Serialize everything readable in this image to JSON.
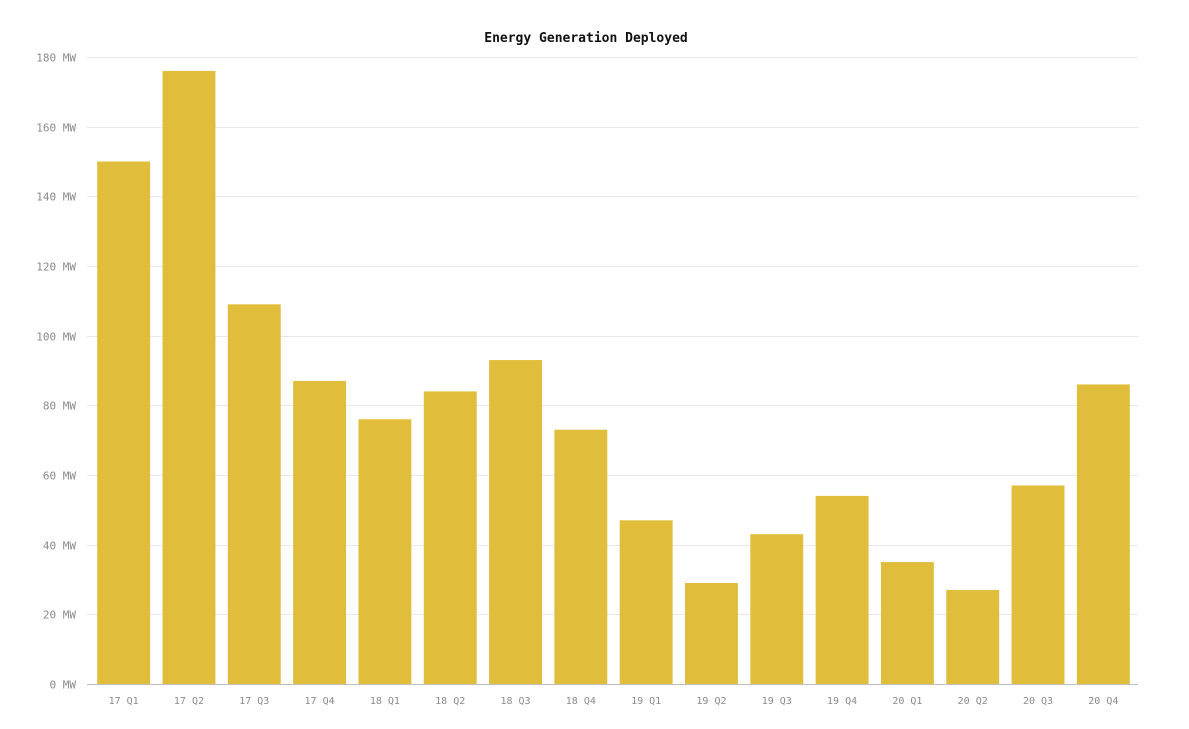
{
  "chart_data": {
    "type": "bar",
    "title": "Energy Generation Deployed",
    "xlabel": "",
    "ylabel": "",
    "categories": [
      "17 Q1",
      "17 Q2",
      "17 Q3",
      "17 Q4",
      "18 Q1",
      "18 Q2",
      "18 Q3",
      "18 Q4",
      "19 Q1",
      "19 Q2",
      "19 Q3",
      "19 Q4",
      "20 Q1",
      "20 Q2",
      "20 Q3",
      "20 Q4"
    ],
    "values": [
      150,
      176,
      109,
      87,
      76,
      84,
      93,
      73,
      47,
      29,
      43,
      54,
      35,
      27,
      57,
      86
    ],
    "ylim": [
      0,
      180
    ],
    "yticks": [
      0,
      20,
      40,
      60,
      80,
      100,
      120,
      140,
      160,
      180
    ],
    "ytick_labels": [
      "0 MW",
      "20 MW",
      "40 MW",
      "60 MW",
      "80 MW",
      "100 MW",
      "120 MW",
      "140 MW",
      "160 MW",
      "180 MW"
    ],
    "grid": true,
    "legend": "none",
    "bar_color": "#e0bd3a"
  }
}
